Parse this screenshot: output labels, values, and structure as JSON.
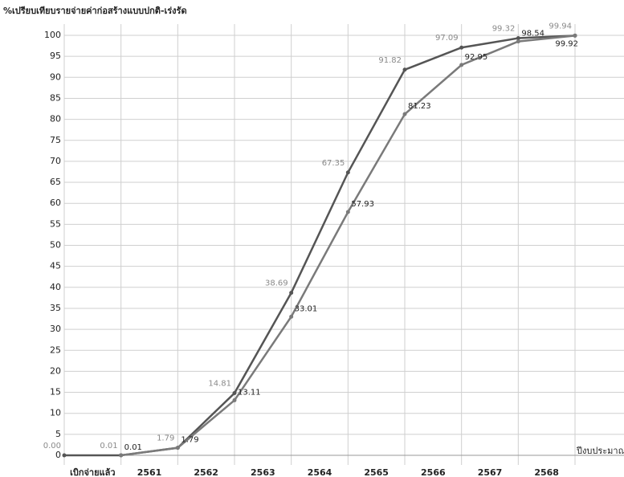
{
  "chart_data": {
    "type": "line",
    "title": "%เปรียบเทียบรายจ่ายค่าก่อสร้างแบบปกติ-เร่งรัด",
    "x_label": "ปีงบประมาณ",
    "categories": [
      null,
      "เบิกจ่ายแล้ว",
      "2561",
      "2562",
      "2563",
      "2564",
      "2565",
      "2566",
      "2567",
      "2568"
    ],
    "series": [
      {
        "color": "#555555",
        "label_color": "#8a8a8a",
        "values": [
          0,
          0.01,
          1.79,
          14.81,
          38.69,
          67.35,
          91.82,
          97.09,
          99.32,
          99.94
        ],
        "value_labels": [
          "0.00",
          "0.01",
          "1.79",
          "14.81",
          "38.69",
          "67.35",
          "91.82",
          "97.09",
          "99.32",
          "99.94"
        ]
      },
      {
        "color": "#7a7a7a",
        "label_color": "#222222",
        "values": [
          null,
          0.01,
          1.79,
          13.11,
          33.01,
          57.93,
          81.23,
          92.95,
          98.54,
          99.92
        ],
        "value_labels": [
          null,
          "0.01",
          "1.79",
          "13.11",
          "33.01",
          "57.93",
          "81.23",
          "92.95",
          "98.54",
          "99.92"
        ]
      }
    ],
    "ylim": [
      0,
      100
    ],
    "yticks": [
      0,
      5,
      10,
      15,
      20,
      25,
      30,
      35,
      40,
      45,
      50,
      55,
      60,
      65,
      70,
      75,
      80,
      85,
      90,
      95,
      100
    ],
    "grid": true
  }
}
